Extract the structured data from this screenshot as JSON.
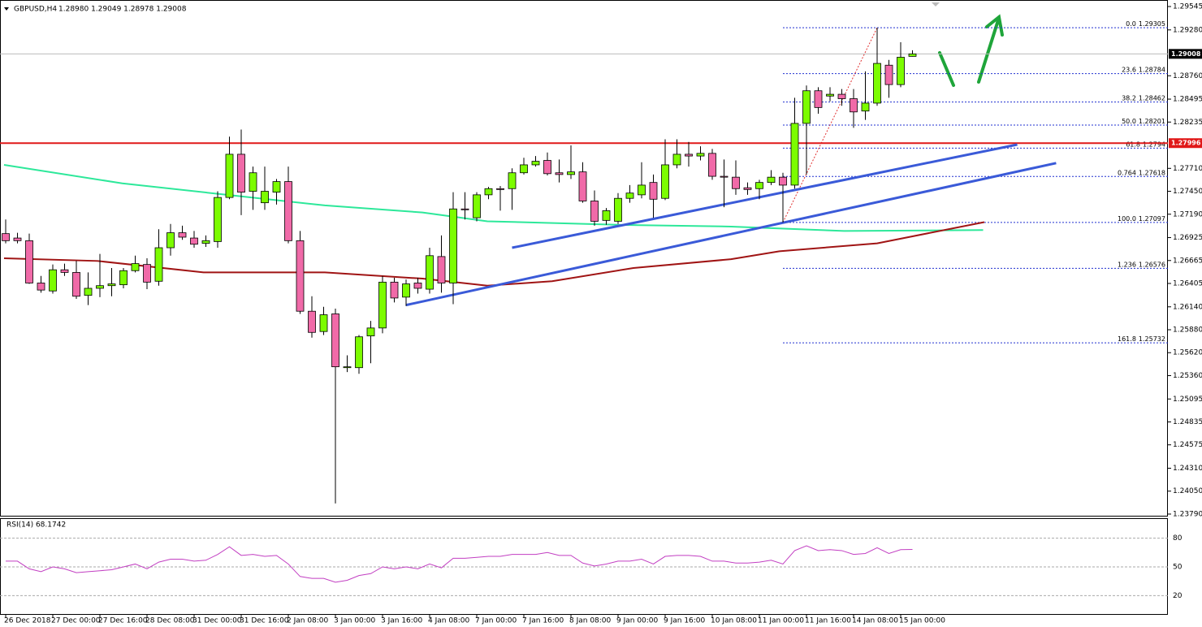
{
  "chart_data": [
    {
      "type": "candlestick",
      "title": "GBPUSD,H4",
      "quote": "1.28980 1.29049 1.28978 1.29008",
      "categories": [
        "26 Dec 2018",
        null,
        null,
        null,
        "27 Dec 00:00",
        null,
        null,
        null,
        "27 Dec 16:00",
        null,
        null,
        null,
        "28 Dec 08:00",
        null,
        null,
        null,
        "31 Dec 00:00",
        null,
        null,
        null,
        "31 Dec 16:00",
        null,
        null,
        null,
        "2 Jan 08:00",
        null,
        null,
        null,
        "3 Jan 00:00",
        null,
        null,
        null,
        "3 Jan 16:00",
        null,
        null,
        null,
        "4 Jan 08:00",
        null,
        null,
        null,
        "7 Jan 00:00",
        null,
        null,
        null,
        "7 Jan 16:00",
        null,
        null,
        null,
        "8 Jan 08:00",
        null,
        null,
        null,
        "9 Jan 00:00",
        null,
        null,
        null,
        "9 Jan 16:00",
        null,
        null,
        null,
        "10 Jan 08:00",
        null,
        null,
        null,
        "11 Jan 00:00",
        null,
        null,
        null,
        "11 Jan 16:00",
        null,
        null,
        null,
        "14 Jan 08:00",
        null,
        null,
        null,
        "15 Jan 00:00",
        null
      ],
      "open": [
        1.2697,
        1.2692,
        1.2689,
        1.2641,
        1.2632,
        1.2656,
        1.2653,
        1.2627,
        1.2635,
        1.2638,
        1.2639,
        1.2655,
        1.2662,
        1.2643,
        1.2681,
        1.2698,
        1.2692,
        1.2686,
        1.2688,
        1.2738,
        1.2787,
        1.2745,
        1.2732,
        1.2744,
        1.2756,
        1.2689,
        1.2609,
        1.2586,
        1.2606,
        1.2545,
        1.2545,
        1.2581,
        1.259,
        1.2642,
        1.2625,
        1.2641,
        1.2634,
        1.2671,
        1.2641,
        1.2725,
        1.2715,
        1.2741,
        1.2748,
        1.2748,
        1.2766,
        1.2775,
        1.278,
        1.2766,
        1.2764,
        1.2767,
        1.2734,
        1.2712,
        1.2711,
        1.2737,
        1.2741,
        1.2755,
        1.2737,
        1.2775,
        1.2787,
        1.2785,
        1.2788,
        1.2762,
        1.2761,
        1.2749,
        1.2748,
        1.2755,
        1.2761,
        1.2752,
        1.2822,
        1.2859,
        1.2853,
        1.2855,
        1.285,
        1.2836,
        1.2845,
        1.2888,
        1.2866,
        1.2898
      ],
      "high": [
        1.2713,
        1.2698,
        1.2697,
        1.2649,
        1.2662,
        1.2663,
        1.2666,
        1.2653,
        1.2674,
        1.2658,
        1.2658,
        1.2672,
        1.2669,
        1.2702,
        1.2708,
        1.2706,
        1.27,
        1.2695,
        1.2745,
        1.2807,
        1.2815,
        1.2773,
        1.2773,
        1.2759,
        1.2773,
        1.27,
        1.2626,
        1.2614,
        1.2612,
        1.2559,
        1.2582,
        1.2598,
        1.2649,
        1.2647,
        1.2645,
        1.2647,
        1.2681,
        1.2695,
        1.2744,
        1.2744,
        1.2744,
        1.275,
        1.2751,
        1.2771,
        1.2783,
        1.2785,
        1.2789,
        1.2781,
        1.2797,
        1.2778,
        1.2746,
        1.2726,
        1.2743,
        1.2752,
        1.2778,
        1.2764,
        1.2804,
        1.2804,
        1.2801,
        1.2796,
        1.2793,
        1.2781,
        1.278,
        1.2755,
        1.2758,
        1.2769,
        1.2766,
        1.2851,
        1.2865,
        1.2863,
        1.2863,
        1.2861,
        1.2861,
        1.2881,
        1.29305,
        1.2894,
        1.2914,
        1.29049
      ],
      "low": [
        1.2686,
        1.2686,
        1.264,
        1.263,
        1.2629,
        1.2649,
        1.2623,
        1.2616,
        1.2625,
        1.2626,
        1.2635,
        1.2653,
        1.2634,
        1.2638,
        1.2672,
        1.269,
        1.2681,
        1.2682,
        1.2681,
        1.2736,
        1.2718,
        1.2724,
        1.2724,
        1.273,
        1.2686,
        1.2606,
        1.2579,
        1.2582,
        1.2391,
        1.254,
        1.2538,
        1.255,
        1.2584,
        1.2619,
        1.2615,
        1.2629,
        1.2629,
        1.263,
        1.2617,
        1.2713,
        1.2711,
        1.2736,
        1.2723,
        1.2724,
        1.2764,
        1.2773,
        1.2763,
        1.2755,
        1.2759,
        1.2732,
        1.2706,
        1.2707,
        1.2708,
        1.2732,
        1.2737,
        1.2715,
        1.2735,
        1.2771,
        1.2773,
        1.278,
        1.2758,
        1.2727,
        1.2741,
        1.2741,
        1.2736,
        1.2752,
        1.27097,
        1.2748,
        1.2764,
        1.2833,
        1.2847,
        1.2842,
        1.2817,
        1.2826,
        1.2842,
        1.2851,
        1.2863,
        1.28978
      ],
      "close": [
        1.2689,
        1.2689,
        1.2641,
        1.2633,
        1.2656,
        1.2653,
        1.2626,
        1.2635,
        1.2638,
        1.264,
        1.2655,
        1.2663,
        1.2642,
        1.2681,
        1.2698,
        1.2693,
        1.2685,
        1.2689,
        1.2738,
        1.2787,
        1.2744,
        1.2766,
        1.2745,
        1.2756,
        1.2689,
        1.2609,
        1.2585,
        1.2605,
        1.2546,
        1.2546,
        1.258,
        1.259,
        1.2642,
        1.2624,
        1.264,
        1.2635,
        1.2672,
        1.2641,
        1.2725,
        1.2724,
        1.2741,
        1.2748,
        1.2747,
        1.2766,
        1.2775,
        1.2779,
        1.2765,
        1.2764,
        1.2767,
        1.2734,
        1.2711,
        1.2723,
        1.2737,
        1.2743,
        1.2752,
        1.2736,
        1.2775,
        1.2787,
        1.2785,
        1.2788,
        1.2762,
        1.2761,
        1.2748,
        1.2747,
        1.2755,
        1.2761,
        1.2752,
        1.2822,
        1.2859,
        1.284,
        1.2855,
        1.285,
        1.2835,
        1.2845,
        1.289,
        1.2866,
        1.2897,
        1.29008
      ],
      "up_color": "#7cfc00",
      "down_color": "#f06aa8",
      "ylim": [
        1.23762,
        1.29619
      ],
      "yticks": [
        1.29545,
        {
          "value": 1.2928,
          "label": "1.29280"
        },
        {
          "value": 1.2876,
          "label": "1.28760"
        },
        1.28495,
        1.28235,
        {
          "value": 1.2771,
          "label": "1.27710"
        },
        {
          "value": 1.2745,
          "label": "1.27450"
        },
        {
          "value": 1.2719,
          "label": "1.27190"
        },
        1.26925,
        1.26665,
        1.26405,
        {
          "value": 1.2614,
          "label": "1.26140"
        },
        {
          "value": 1.2588,
          "label": "1.25880"
        },
        {
          "value": 1.2562,
          "label": "1.25620"
        },
        {
          "value": 1.2536,
          "label": "1.25360"
        },
        1.25095,
        1.24835,
        1.24575,
        {
          "value": 1.2431,
          "label": "1.24310"
        },
        {
          "value": 1.2405,
          "label": "1.24050"
        },
        {
          "value": 1.2379,
          "label": "1.23790"
        }
      ],
      "current_price": 1.29008,
      "resistance": {
        "value": 1.27996,
        "color": "#e01818"
      },
      "ma_lines": [
        {
          "color": "#2de89a",
          "x": [
            -0.14,
            9.9,
            18.8,
            27.1,
            35.4,
            40.9,
            51.9,
            61.6,
            71.2,
            83.0
          ],
          "values": [
            1.2775,
            1.2754,
            1.2741,
            1.2729,
            1.2721,
            1.2711,
            1.2707,
            1.2705,
            1.27,
            1.2701
          ]
        },
        {
          "color": "#a01414",
          "x": [
            -0.14,
            7.8,
            16.8,
            27.1,
            35.4,
            40.9,
            46.4,
            53.3,
            61.6,
            65.7,
            74.0,
            83.1
          ],
          "values": [
            1.2669,
            1.2666,
            1.2653,
            1.2653,
            1.2646,
            1.2638,
            1.2643,
            1.2658,
            1.2668,
            1.2677,
            1.2686,
            1.271
          ]
        }
      ],
      "trend_lines": [
        {
          "color": "#3a5ad8",
          "x": [
            43.0,
            85.9
          ],
          "values": [
            1.2681,
            1.2798
          ]
        },
        {
          "color": "#3a5ad8",
          "x": [
            34.0,
            89.2
          ],
          "values": [
            1.2616,
            1.2777
          ]
        }
      ],
      "fib": {
        "color": "#2030d0",
        "anchor_color": "#e03030",
        "x": [
          66,
          74
        ],
        "values": [
          1.27097,
          1.29305
        ],
        "levels": [
          {
            "label": "0.0",
            "value": 1.29305
          },
          {
            "label": "23.6",
            "value": 1.28784
          },
          {
            "label": "38.2",
            "value": 1.28462
          },
          {
            "label": "50.0",
            "value": 1.28201
          },
          {
            "label": "61.8",
            "value": 1.2794
          },
          {
            "label": "0.764",
            "value": 1.27618
          },
          {
            "label": "100.0",
            "value": 1.27097
          },
          {
            "label": "1.236",
            "value": 1.26576
          },
          {
            "label": "161.8",
            "value": 1.25732
          }
        ]
      }
    },
    {
      "type": "line",
      "title": "RSI(14) 68.1742",
      "color": "#c23fc2",
      "values": [
        56,
        56,
        48,
        45,
        50,
        48,
        44,
        45,
        46,
        47,
        50,
        53,
        48,
        55,
        58,
        58,
        56,
        57,
        63,
        71,
        62,
        63,
        61,
        62,
        53,
        40,
        38,
        38,
        34,
        36,
        41,
        43,
        50,
        48,
        50,
        48,
        53,
        49,
        59,
        59,
        60,
        61,
        61,
        63,
        63,
        63,
        65,
        62,
        62,
        54,
        51,
        53,
        56,
        56,
        58,
        53,
        61,
        62,
        62,
        61,
        56,
        56,
        54,
        54,
        55,
        57,
        53,
        67,
        72,
        67,
        68,
        67,
        63,
        64,
        70,
        64,
        68,
        68.1742
      ],
      "ylim": [
        0,
        100
      ],
      "yticks": [
        80,
        50,
        20
      ]
    }
  ]
}
